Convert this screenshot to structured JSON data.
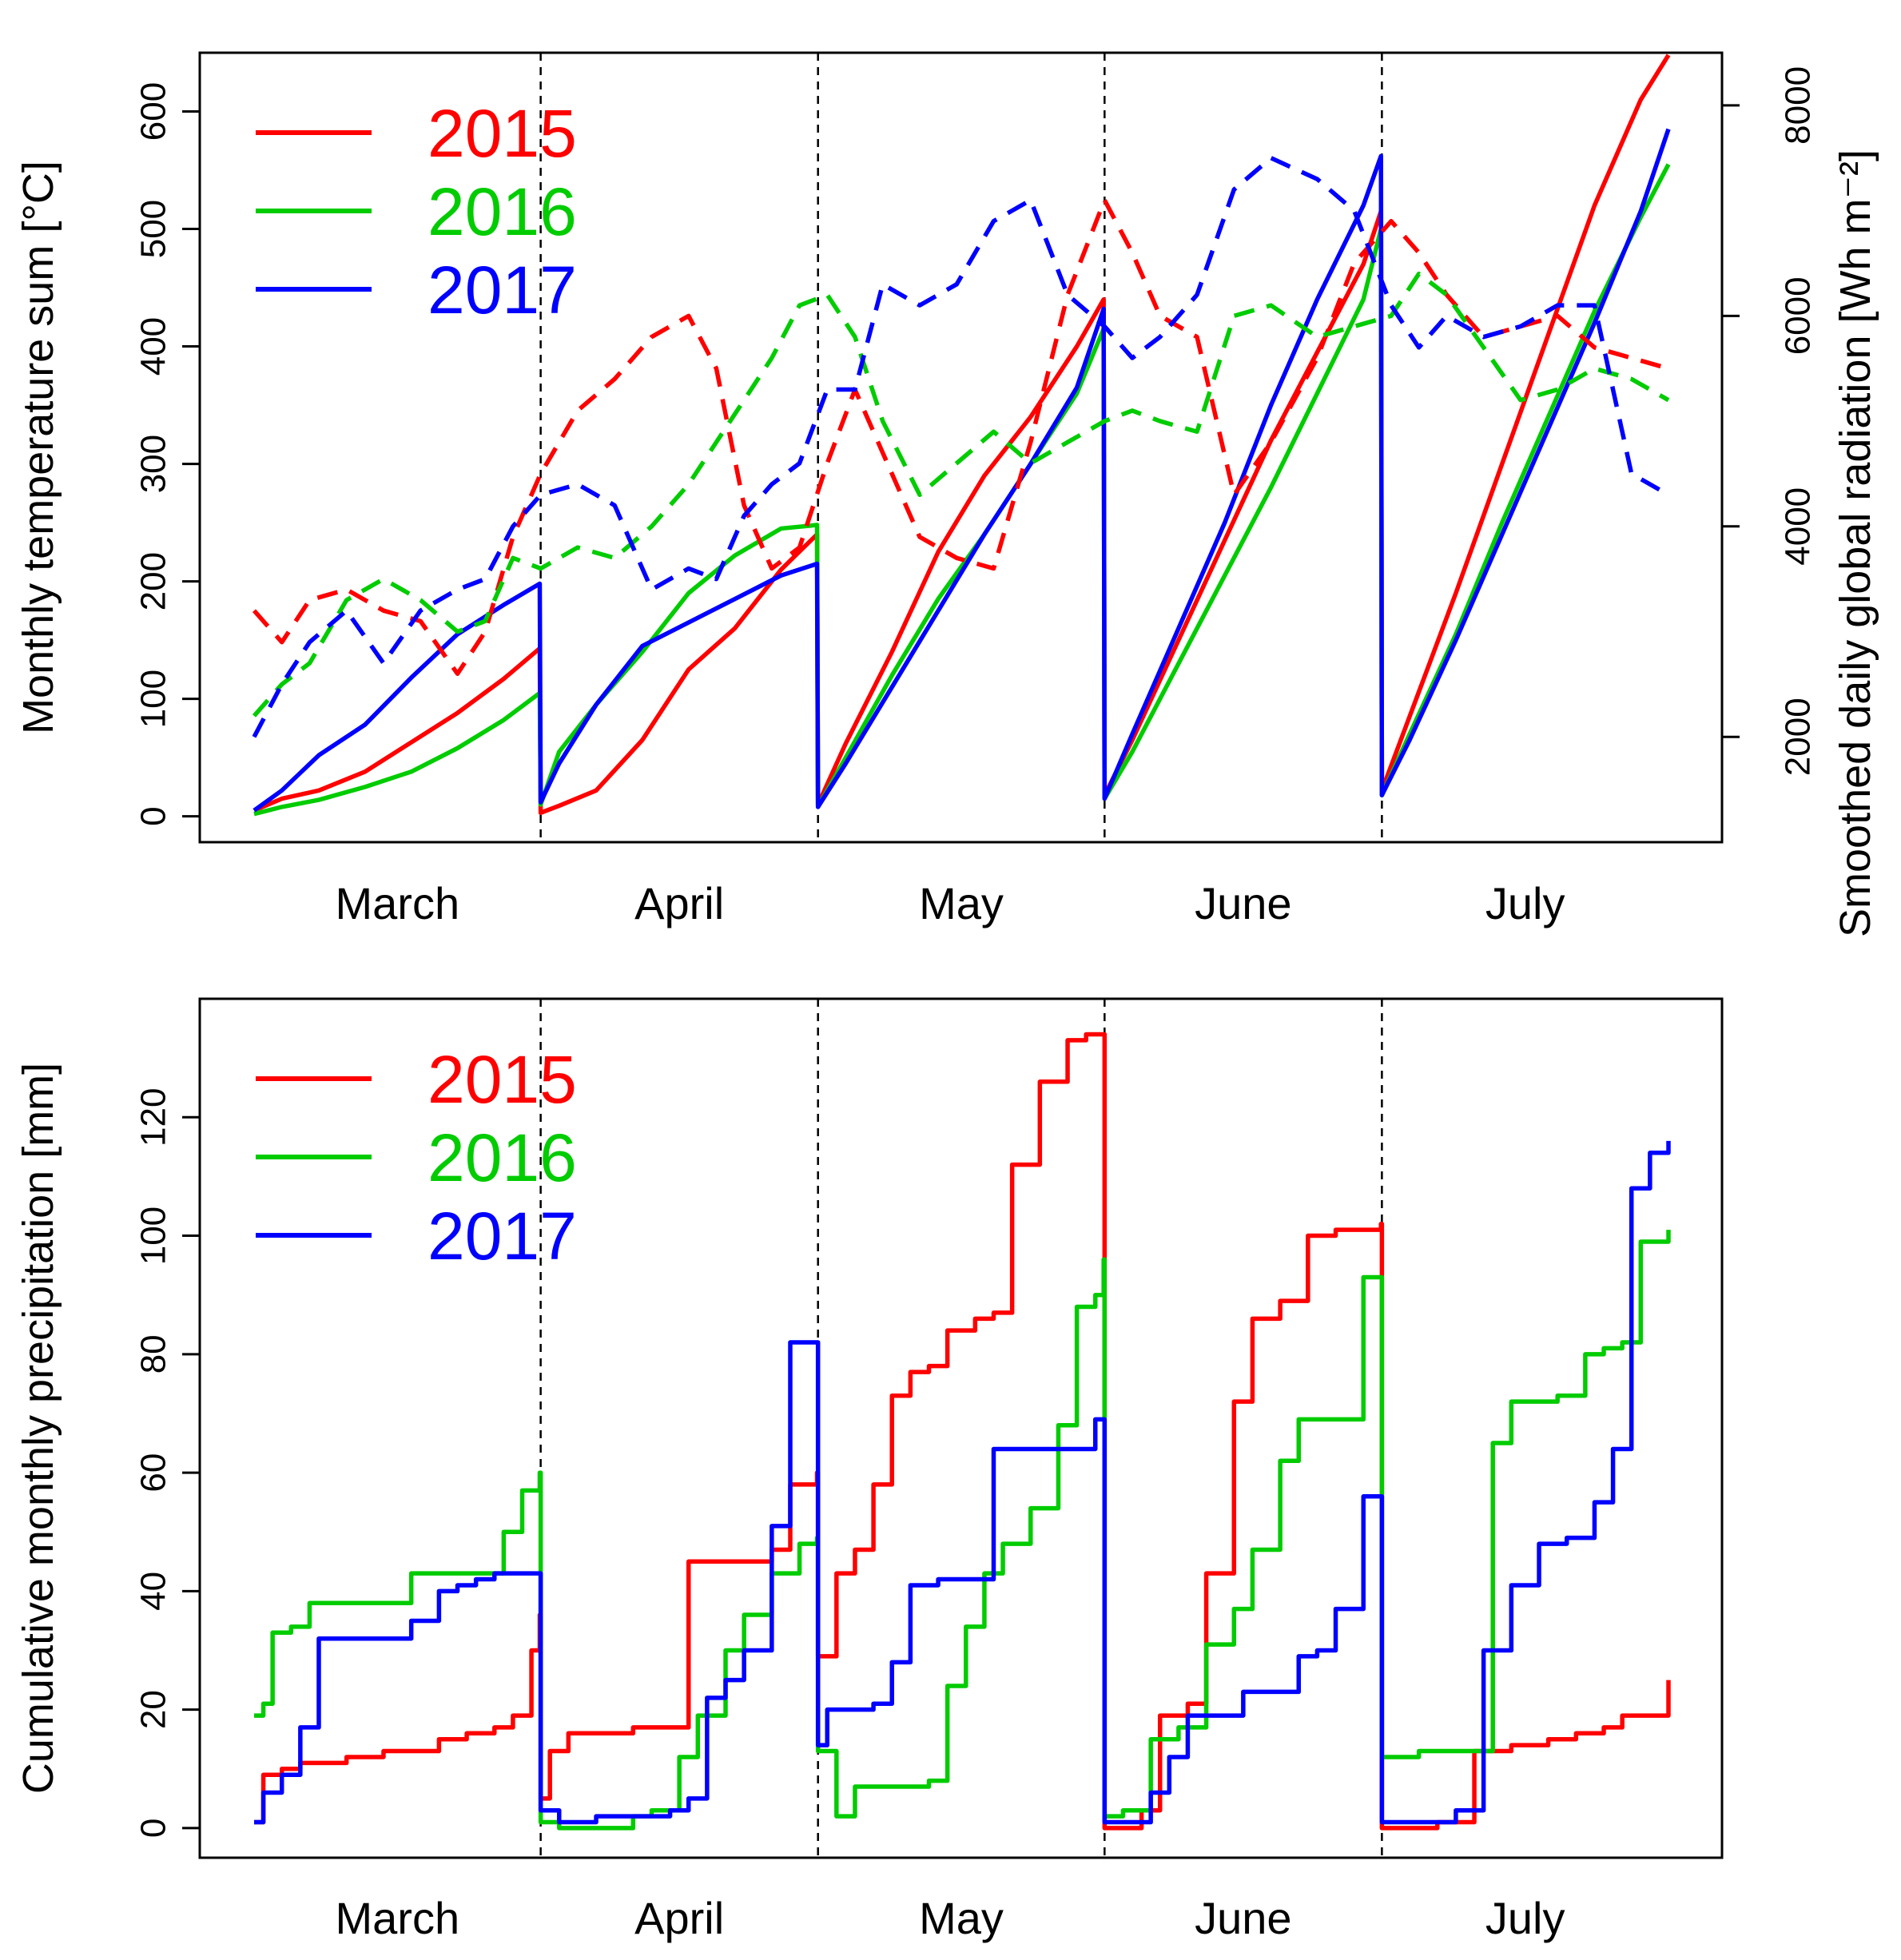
{
  "chart_data": [
    {
      "type": "line",
      "panel": "top",
      "title": "",
      "ylabel": "Monthly temperature sum [°C]",
      "ylabel_right": "Smoothed daily global radiation [Wh m⁻²]",
      "months": [
        "March",
        "April",
        "May",
        "June",
        "July"
      ],
      "ylim": [
        -22,
        650
      ],
      "yticks": [
        0,
        100,
        200,
        300,
        400,
        500,
        600
      ],
      "ylim_right": [
        1000,
        8500
      ],
      "yticks_right": [
        2000,
        4000,
        6000,
        8000
      ],
      "x_range_days": [
        0,
        153
      ],
      "month_boundaries": [
        31,
        61,
        92,
        122
      ],
      "legend": {
        "position": "top-left",
        "entries": [
          "2015",
          "2016",
          "2017"
        ]
      },
      "series": [
        {
          "name": "2015",
          "color": "#ff0000",
          "kind": "temperature_sum",
          "style": "solid",
          "x": [
            0,
            3,
            7,
            12,
            17,
            22,
            27,
            30.9,
            31,
            33,
            37,
            42,
            47,
            52,
            57,
            60.9,
            61,
            64,
            69,
            74,
            79,
            84,
            89,
            91.9,
            92,
            95,
            100,
            105,
            110,
            115,
            120,
            121.9,
            122,
            125,
            130,
            135,
            140,
            145,
            150,
            153
          ],
          "values": [
            5,
            15,
            22,
            38,
            63,
            88,
            117,
            143,
            3,
            9,
            22,
            65,
            125,
            160,
            210,
            240,
            10,
            62,
            140,
            225,
            290,
            340,
            400,
            440,
            18,
            65,
            150,
            235,
            320,
            395,
            470,
            515,
            22,
            85,
            190,
            300,
            410,
            520,
            610,
            648
          ]
        },
        {
          "name": "2016",
          "color": "#00cc00",
          "kind": "temperature_sum",
          "style": "solid",
          "x": [
            0,
            3,
            7,
            12,
            17,
            22,
            27,
            30.9,
            31,
            33,
            37,
            42,
            47,
            52,
            57,
            60.9,
            61,
            64,
            69,
            74,
            79,
            84,
            89,
            91.9,
            92,
            95,
            100,
            105,
            110,
            115,
            120,
            121.9,
            122,
            125,
            130,
            135,
            140,
            145,
            150,
            153
          ],
          "values": [
            2,
            8,
            14,
            25,
            38,
            58,
            82,
            105,
            10,
            55,
            95,
            140,
            190,
            222,
            245,
            248,
            8,
            50,
            120,
            185,
            240,
            300,
            360,
            415,
            15,
            55,
            130,
            205,
            280,
            360,
            440,
            500,
            18,
            70,
            155,
            250,
            340,
            430,
            510,
            555
          ]
        },
        {
          "name": "2017",
          "color": "#0000ff",
          "kind": "temperature_sum",
          "style": "solid",
          "x": [
            0,
            3,
            7,
            12,
            17,
            22,
            27,
            30.9,
            31,
            33,
            37,
            42,
            47,
            52,
            57,
            60.9,
            61,
            64,
            69,
            74,
            79,
            84,
            89,
            91.9,
            92,
            95,
            100,
            105,
            110,
            115,
            120,
            121.9,
            122,
            125,
            130,
            135,
            140,
            145,
            150,
            153
          ],
          "values": [
            5,
            22,
            52,
            78,
            118,
            155,
            180,
            198,
            12,
            45,
            95,
            145,
            165,
            185,
            205,
            215,
            8,
            45,
            110,
            175,
            240,
            300,
            365,
            432,
            15,
            70,
            160,
            250,
            350,
            440,
            520,
            562,
            18,
            65,
            150,
            240,
            330,
            420,
            515,
            585
          ]
        },
        {
          "name": "2015",
          "color": "#ff0000",
          "kind": "global_radiation",
          "style": "dashed",
          "x": [
            0,
            3,
            6,
            10,
            14,
            18,
            22,
            25,
            28,
            31,
            35,
            39,
            43,
            47,
            50,
            53,
            56,
            59,
            62,
            65,
            68,
            72,
            76,
            80,
            84,
            88,
            92,
            95,
            98,
            102,
            106,
            110,
            115,
            119,
            123,
            126,
            129,
            133,
            137,
            141,
            145,
            149,
            153
          ],
          "values": [
            3200,
            2900,
            3300,
            3400,
            3200,
            3100,
            2600,
            3000,
            3900,
            4500,
            5100,
            5400,
            5800,
            6000,
            5500,
            4200,
            3600,
            3800,
            4600,
            5300,
            4700,
            3900,
            3700,
            3600,
            4800,
            6200,
            7100,
            6600,
            6000,
            5800,
            4300,
            4800,
            5600,
            6500,
            6900,
            6600,
            6200,
            5800,
            5900,
            6000,
            5700,
            5600,
            5500
          ]
        },
        {
          "name": "2016",
          "color": "#00cc00",
          "kind": "global_radiation",
          "style": "dashed",
          "x": [
            0,
            3,
            6,
            10,
            14,
            18,
            22,
            25,
            28,
            31,
            35,
            39,
            43,
            47,
            50,
            53,
            56,
            59,
            62,
            65,
            68,
            72,
            76,
            80,
            84,
            88,
            92,
            95,
            98,
            102,
            106,
            110,
            115,
            119,
            123,
            126,
            129,
            133,
            137,
            141,
            145,
            149,
            153
          ],
          "values": [
            2200,
            2500,
            2700,
            3300,
            3500,
            3300,
            3000,
            3100,
            3700,
            3600,
            3800,
            3700,
            4000,
            4400,
            4800,
            5200,
            5600,
            6100,
            6200,
            5800,
            5000,
            4300,
            4600,
            4900,
            4600,
            4800,
            5000,
            5100,
            5000,
            4900,
            6000,
            6100,
            5800,
            5900,
            6000,
            6400,
            6200,
            5700,
            5200,
            5300,
            5500,
            5400,
            5200
          ]
        },
        {
          "name": "2017",
          "color": "#0000ff",
          "kind": "global_radiation",
          "style": "dashed",
          "x": [
            0,
            3,
            6,
            10,
            14,
            18,
            22,
            25,
            28,
            31,
            35,
            39,
            43,
            47,
            50,
            53,
            56,
            59,
            62,
            65,
            68,
            72,
            76,
            80,
            84,
            88,
            92,
            95,
            98,
            102,
            106,
            110,
            115,
            119,
            123,
            126,
            129,
            133,
            137,
            141,
            145,
            149,
            153
          ],
          "values": [
            2000,
            2500,
            2900,
            3200,
            2700,
            3200,
            3400,
            3500,
            4000,
            4300,
            4400,
            4200,
            3400,
            3600,
            3500,
            4100,
            4400,
            4600,
            5300,
            5300,
            6300,
            6100,
            6300,
            6900,
            7100,
            6200,
            5900,
            5600,
            5800,
            6200,
            7200,
            7500,
            7300,
            7000,
            6100,
            5700,
            6000,
            5800,
            5900,
            6100,
            6100,
            4500,
            4300
          ]
        }
      ]
    },
    {
      "type": "line",
      "panel": "bottom",
      "title": "",
      "ylabel": "Cumulative monthly precipitation [mm]",
      "months": [
        "March",
        "April",
        "May",
        "June",
        "July"
      ],
      "ylim": [
        -5,
        140
      ],
      "yticks": [
        0,
        20,
        40,
        60,
        80,
        100,
        120
      ],
      "x_range_days": [
        0,
        153
      ],
      "month_boundaries": [
        31,
        61,
        92,
        122
      ],
      "legend": {
        "position": "top-left",
        "entries": [
          "2015",
          "2016",
          "2017"
        ]
      },
      "series": [
        {
          "name": "2015",
          "color": "#ff0000",
          "style": "steps",
          "x": [
            0,
            1,
            3,
            5,
            10,
            14,
            18,
            20,
            23,
            26,
            28,
            30,
            30.9,
            31,
            32,
            34,
            41,
            45,
            47,
            51,
            56,
            58,
            60.9,
            61,
            63,
            65,
            67,
            69,
            71,
            73,
            75,
            78,
            80,
            82,
            85,
            88,
            90,
            91.9,
            92,
            95,
            96,
            98,
            101,
            103,
            106,
            108,
            111,
            114,
            117,
            121.9,
            122,
            124,
            128,
            132,
            136,
            140,
            143,
            146,
            148,
            153
          ],
          "values": [
            1,
            9,
            10,
            11,
            12,
            13,
            13,
            15,
            16,
            17,
            19,
            30,
            36,
            5,
            13,
            16,
            17,
            17,
            45,
            45,
            47,
            58,
            60,
            29,
            43,
            47,
            58,
            73,
            77,
            78,
            84,
            86,
            87,
            112,
            126,
            133,
            134,
            134,
            0,
            0,
            3,
            19,
            21,
            43,
            72,
            86,
            89,
            100,
            101,
            102,
            0,
            0,
            1,
            13,
            14,
            15,
            16,
            17,
            19,
            25
          ]
        },
        {
          "name": "2016",
          "color": "#00cc00",
          "style": "steps",
          "x": [
            0,
            1,
            2,
            4,
            6,
            10,
            15,
            17,
            19,
            23,
            25,
            27,
            29,
            30.9,
            31,
            33,
            37,
            41,
            43,
            46,
            48,
            51,
            53,
            56,
            59,
            60.9,
            61,
            63,
            65,
            69,
            73,
            75,
            77,
            79,
            81,
            84,
            87,
            89,
            91,
            91.9,
            92,
            94,
            97,
            100,
            103,
            106,
            108,
            111,
            113,
            118,
            120,
            121.9,
            122,
            126,
            129,
            132,
            134,
            136,
            138,
            141,
            144,
            146,
            148,
            150,
            153
          ],
          "values": [
            19,
            21,
            33,
            34,
            38,
            38,
            38,
            43,
            43,
            43,
            43,
            50,
            57,
            60,
            1,
            0,
            0,
            2,
            3,
            12,
            19,
            30,
            36,
            43,
            48,
            49,
            13,
            2,
            7,
            7,
            8,
            24,
            34,
            43,
            48,
            54,
            68,
            88,
            90,
            96,
            2,
            3,
            15,
            17,
            31,
            37,
            47,
            62,
            69,
            69,
            93,
            93,
            12,
            13,
            13,
            13,
            65,
            72,
            72,
            73,
            80,
            81,
            82,
            99,
            101
          ]
        },
        {
          "name": "2017",
          "color": "#0000ff",
          "style": "steps",
          "x": [
            0,
            1,
            3,
            5,
            7,
            8,
            14,
            17,
            20,
            22,
            24,
            26,
            28,
            30.9,
            31,
            33,
            37,
            42,
            45,
            47,
            49,
            51,
            53,
            56,
            58,
            60.9,
            61,
            62,
            65,
            67,
            69,
            71,
            74,
            80,
            86,
            89,
            91,
            91.9,
            92,
            94,
            97,
            99,
            101,
            104,
            107,
            111,
            113,
            115,
            117,
            120,
            121.9,
            122,
            126,
            128,
            130,
            133,
            136,
            139,
            142,
            145,
            147,
            149,
            151,
            153
          ],
          "values": [
            1,
            6,
            9,
            17,
            32,
            32,
            32,
            35,
            40,
            41,
            42,
            43,
            43,
            43,
            3,
            1,
            2,
            2,
            3,
            5,
            22,
            25,
            30,
            51,
            82,
            82,
            14,
            20,
            20,
            21,
            28,
            41,
            42,
            64,
            64,
            64,
            69,
            69,
            1,
            1,
            6,
            12,
            19,
            19,
            23,
            23,
            29,
            30,
            37,
            56,
            56,
            1,
            1,
            1,
            3,
            30,
            41,
            48,
            49,
            55,
            64,
            108,
            114,
            116
          ]
        }
      ]
    }
  ]
}
